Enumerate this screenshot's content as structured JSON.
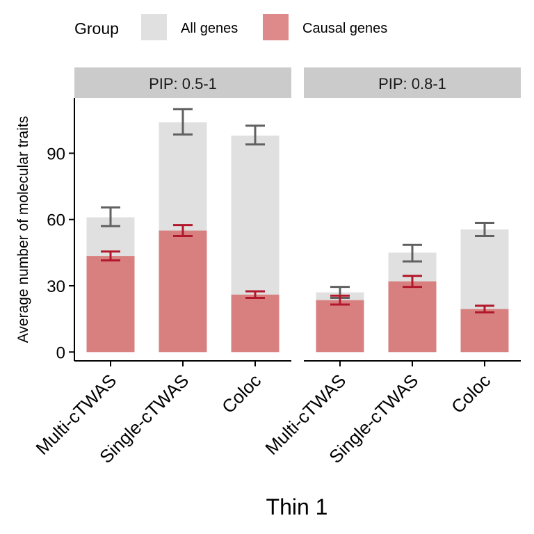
{
  "legend": {
    "title": "Group",
    "items": [
      {
        "label": "All genes",
        "color": "#e0e0e0"
      },
      {
        "label": "Causal genes",
        "color": "#de8a8a"
      }
    ]
  },
  "chart_data": {
    "type": "bar",
    "xlabel": "Thin 1",
    "ylabel": "Average number of molecular traits",
    "ylim": [
      -4,
      115
    ],
    "yticks": [
      0,
      30,
      60,
      90
    ],
    "grid": false,
    "legend_position": "top",
    "colors": {
      "all_genes_bar": "#e0e0e0",
      "causal_genes_bar": "#d88080",
      "all_genes_error": "#616161",
      "causal_genes_error": "#b2182b",
      "strip": "#cbcbcb"
    },
    "panels": [
      {
        "label": "PIP: 0.5-1",
        "categories": [
          "Multi-cTWAS",
          "Single-cTWAS",
          "Coloc"
        ],
        "series": [
          {
            "name": "All genes",
            "values": [
              61,
              104,
              98
            ],
            "error_low": [
              57,
              98.5,
              94
            ],
            "error_high": [
              65.5,
              110,
              102.5
            ]
          },
          {
            "name": "Causal genes",
            "values": [
              43.5,
              55,
              26
            ],
            "error_low": [
              41.5,
              52.5,
              24.5
            ],
            "error_high": [
              45.5,
              57.5,
              27.5
            ]
          }
        ]
      },
      {
        "label": "PIP: 0.8-1",
        "categories": [
          "Multi-cTWAS",
          "Single-cTWAS",
          "Coloc"
        ],
        "series": [
          {
            "name": "All genes",
            "values": [
              27,
              45,
              55.5
            ],
            "error_low": [
              24.5,
              41,
              52.5
            ],
            "error_high": [
              29.5,
              48.5,
              58.5
            ]
          },
          {
            "name": "Causal genes",
            "values": [
              23.5,
              32,
              19.5
            ],
            "error_low": [
              21.5,
              29.5,
              18
            ],
            "error_high": [
              25.5,
              34.5,
              21
            ]
          }
        ]
      }
    ]
  }
}
